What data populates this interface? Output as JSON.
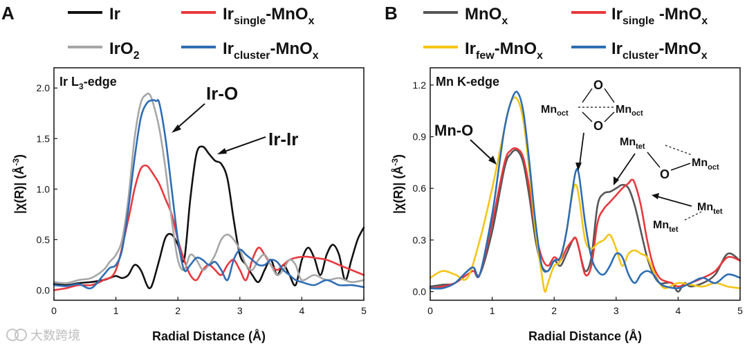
{
  "chart_data": [
    {
      "panel": "A",
      "type": "line",
      "title": "",
      "edge": {
        "pre": "Ir L",
        "sub": "3",
        "post": "-edge"
      },
      "xlabel": "Radial Distance (Å)",
      "ylabel": {
        "pre": "|χ(R)| (Å",
        "sup": "-3",
        "post": ")"
      },
      "xlim": [
        0,
        5
      ],
      "ylim": [
        -0.1,
        2.2
      ],
      "xticks": [
        "0",
        "1",
        "2",
        "3",
        "4",
        "5"
      ],
      "yticks": [
        "0.0",
        "0.5",
        "1.0",
        "1.5",
        "2.0"
      ],
      "legend": [
        {
          "base": "Ir",
          "sub": "",
          "suffix": "",
          "sub2": "",
          "color": "#111111"
        },
        {
          "base": "Ir",
          "sub": "single",
          "suffix": "-MnO",
          "sub2": "x",
          "color": "#e8383d"
        },
        {
          "base": "IrO",
          "sub": "2",
          "suffix": "",
          "sub2": "",
          "color": "#a6a6a6"
        },
        {
          "base": "Ir",
          "sub": "cluster",
          "suffix": "-MnO",
          "sub2": "x",
          "color": "#2e6db3"
        }
      ],
      "annotations": [
        "Ir-O",
        "Ir-Ir"
      ],
      "series": [
        {
          "name": "Ir",
          "color": "#111111",
          "x": [
            0,
            0.2,
            0.4,
            0.6,
            0.8,
            0.9,
            1.0,
            1.1,
            1.2,
            1.3,
            1.4,
            1.5,
            1.55,
            1.6,
            1.7,
            1.8,
            1.9,
            2.0,
            2.1,
            2.2,
            2.3,
            2.4,
            2.5,
            2.6,
            2.7,
            2.8,
            2.9,
            3.0,
            3.1,
            3.2,
            3.3,
            3.4,
            3.5,
            3.6,
            3.7,
            3.8,
            3.9,
            4.0,
            4.1,
            4.2,
            4.3,
            4.4,
            4.5,
            4.6,
            4.7,
            4.8,
            4.9,
            5.0
          ],
          "y": [
            0.06,
            0.05,
            0.07,
            0.08,
            0.1,
            0.12,
            0.14,
            0.12,
            0.15,
            0.25,
            0.2,
            0.05,
            0.02,
            0.08,
            0.3,
            0.52,
            0.55,
            0.45,
            0.3,
            0.9,
            1.35,
            1.42,
            1.35,
            1.28,
            1.25,
            1.1,
            0.7,
            0.35,
            0.25,
            0.15,
            0.08,
            0.2,
            0.3,
            0.15,
            0.25,
            0.15,
            0.05,
            0.3,
            0.42,
            0.32,
            0.15,
            0.35,
            0.45,
            0.35,
            0.1,
            0.3,
            0.5,
            0.62
          ]
        },
        {
          "name": "Ir_single-MnO_x",
          "color": "#e8383d",
          "x": [
            0,
            0.2,
            0.4,
            0.6,
            0.8,
            1.0,
            1.2,
            1.3,
            1.4,
            1.5,
            1.6,
            1.7,
            1.8,
            1.9,
            2.0,
            2.1,
            2.2,
            2.3,
            2.4,
            2.5,
            2.6,
            2.7,
            2.8,
            2.9,
            3.0,
            3.1,
            3.2,
            3.3,
            3.4,
            3.5,
            3.6,
            3.7,
            3.8,
            3.9,
            4.0,
            4.1,
            4.2,
            4.4,
            4.6,
            4.8,
            5.0
          ],
          "y": [
            0.0,
            0.02,
            0.05,
            0.05,
            0.1,
            0.2,
            0.7,
            1.0,
            1.2,
            1.23,
            1.15,
            1.05,
            0.9,
            0.75,
            0.5,
            0.3,
            0.15,
            0.1,
            0.2,
            0.25,
            0.2,
            0.15,
            0.25,
            0.3,
            0.2,
            0.1,
            0.3,
            0.42,
            0.35,
            0.25,
            0.2,
            0.25,
            0.3,
            0.32,
            0.33,
            0.33,
            0.32,
            0.3,
            0.25,
            0.2,
            0.15
          ]
        },
        {
          "name": "IrO2",
          "color": "#a6a6a6",
          "x": [
            0,
            0.2,
            0.4,
            0.6,
            0.8,
            0.9,
            1.0,
            1.1,
            1.2,
            1.3,
            1.4,
            1.5,
            1.55,
            1.6,
            1.7,
            1.8,
            1.9,
            2.0,
            2.1,
            2.2,
            2.3,
            2.4,
            2.5,
            2.6,
            2.7,
            2.8,
            2.9,
            3.0,
            3.1,
            3.2,
            3.3,
            3.4,
            3.5,
            3.6,
            3.7,
            3.8,
            3.9,
            4.0,
            4.2,
            4.4,
            4.6,
            4.8,
            5.0
          ],
          "y": [
            0.08,
            0.07,
            0.1,
            0.12,
            0.2,
            0.28,
            0.35,
            0.5,
            0.9,
            1.5,
            1.85,
            1.94,
            1.93,
            1.85,
            1.6,
            1.2,
            0.7,
            0.3,
            0.2,
            0.35,
            0.3,
            0.2,
            0.25,
            0.35,
            0.5,
            0.55,
            0.5,
            0.4,
            0.25,
            0.2,
            0.3,
            0.35,
            0.25,
            0.15,
            0.2,
            0.3,
            0.25,
            0.1,
            0.15,
            0.1,
            0.12,
            0.08,
            0.1
          ]
        },
        {
          "name": "Ir_cluster-MnO_x",
          "color": "#2e6db3",
          "x": [
            0,
            0.2,
            0.4,
            0.6,
            0.8,
            0.9,
            1.0,
            1.1,
            1.2,
            1.3,
            1.4,
            1.5,
            1.6,
            1.65,
            1.7,
            1.8,
            1.9,
            2.0,
            2.1,
            2.2,
            2.3,
            2.4,
            2.5,
            2.6,
            2.7,
            2.8,
            2.9,
            3.0,
            3.1,
            3.2,
            3.3,
            3.4,
            3.5,
            3.6,
            3.7,
            3.8,
            3.9,
            4.0,
            4.2,
            4.4,
            4.6,
            4.8,
            5.0
          ],
          "y": [
            0.05,
            0.04,
            0.06,
            0.02,
            0.15,
            0.22,
            0.25,
            0.4,
            0.8,
            1.3,
            1.7,
            1.85,
            1.88,
            1.87,
            1.85,
            1.5,
            1.0,
            0.5,
            0.2,
            0.25,
            0.32,
            0.3,
            0.25,
            0.28,
            0.2,
            0.1,
            0.3,
            0.4,
            0.35,
            0.3,
            0.25,
            0.25,
            0.3,
            0.28,
            0.2,
            0.15,
            0.1,
            0.08,
            0.05,
            0.1,
            0.05,
            0.05,
            0.03
          ]
        }
      ]
    },
    {
      "panel": "B",
      "type": "line",
      "title": "",
      "edge": {
        "pre": "Mn K-edge",
        "sub": "",
        "post": ""
      },
      "xlabel": "Radial Distance (Å)",
      "ylabel": {
        "pre": "|χ(R)| (Å",
        "sup": "-3",
        "post": ")"
      },
      "xlim": [
        0,
        5
      ],
      "ylim": [
        -0.05,
        1.3
      ],
      "xticks": [
        "0",
        "1",
        "2",
        "3",
        "4",
        "5"
      ],
      "yticks": [
        "0.0",
        "0.3",
        "0.6",
        "0.9",
        "1.2"
      ],
      "legend": [
        {
          "base": "MnO",
          "sub": "x",
          "suffix": "",
          "sub2": "",
          "color": "#555555"
        },
        {
          "base": "Ir",
          "sub": "single",
          "suffix": " -MnO",
          "sub2": "x",
          "color": "#e8383d"
        },
        {
          "base": "Ir",
          "sub": "few",
          "suffix": "-MnO",
          "sub2": "x",
          "color": "#f5c518"
        },
        {
          "base": "Ir",
          "sub": "cluster",
          "suffix": "-MnO",
          "sub2": "x",
          "color": "#2e6db3"
        }
      ],
      "annotations": [
        "Mn-O"
      ],
      "series": [
        {
          "name": "MnO_x",
          "color": "#555555",
          "x": [
            0,
            0.2,
            0.4,
            0.6,
            0.7,
            0.8,
            1.0,
            1.2,
            1.3,
            1.4,
            1.5,
            1.6,
            1.7,
            1.8,
            1.9,
            2.0,
            2.1,
            2.2,
            2.3,
            2.35,
            2.4,
            2.5,
            2.6,
            2.7,
            2.8,
            2.9,
            3.0,
            3.1,
            3.2,
            3.3,
            3.4,
            3.5,
            3.6,
            3.7,
            3.8,
            3.9,
            4.0,
            4.1,
            4.2,
            4.4,
            4.6,
            4.8,
            5.0
          ],
          "y": [
            0.03,
            0.04,
            0.05,
            0.12,
            0.14,
            0.1,
            0.35,
            0.72,
            0.8,
            0.82,
            0.75,
            0.55,
            0.3,
            0.15,
            0.12,
            0.18,
            0.15,
            0.22,
            0.3,
            0.31,
            0.25,
            0.12,
            0.2,
            0.5,
            0.57,
            0.58,
            0.6,
            0.62,
            0.6,
            0.5,
            0.35,
            0.2,
            0.1,
            0.05,
            0.05,
            0.05,
            0.0,
            0.05,
            0.03,
            0.05,
            0.1,
            0.22,
            0.18
          ]
        },
        {
          "name": "Ir_single-MnO_x",
          "color": "#e8383d",
          "x": [
            0,
            0.2,
            0.4,
            0.6,
            0.7,
            0.8,
            1.0,
            1.2,
            1.3,
            1.4,
            1.5,
            1.6,
            1.7,
            1.8,
            1.9,
            2.0,
            2.1,
            2.2,
            2.3,
            2.35,
            2.4,
            2.5,
            2.6,
            2.7,
            2.8,
            2.9,
            3.0,
            3.1,
            3.2,
            3.25,
            3.3,
            3.4,
            3.5,
            3.6,
            3.7,
            3.8,
            3.9,
            4.0,
            4.2,
            4.4,
            4.6,
            4.8,
            5.0
          ],
          "y": [
            0.02,
            0.03,
            0.05,
            0.1,
            0.12,
            0.1,
            0.4,
            0.75,
            0.82,
            0.83,
            0.78,
            0.6,
            0.35,
            0.2,
            0.15,
            0.2,
            0.18,
            0.25,
            0.3,
            0.31,
            0.25,
            0.1,
            0.15,
            0.4,
            0.48,
            0.52,
            0.56,
            0.6,
            0.63,
            0.65,
            0.63,
            0.5,
            0.3,
            0.15,
            0.08,
            0.06,
            0.05,
            0.03,
            0.05,
            0.08,
            0.12,
            0.2,
            0.18
          ]
        },
        {
          "name": "Ir_few-MnO_x",
          "color": "#f5c518",
          "x": [
            0,
            0.2,
            0.4,
            0.6,
            0.8,
            1.0,
            1.2,
            1.3,
            1.4,
            1.5,
            1.6,
            1.7,
            1.8,
            1.85,
            1.9,
            2.0,
            2.1,
            2.2,
            2.3,
            2.35,
            2.4,
            2.5,
            2.6,
            2.7,
            2.8,
            2.9,
            3.0,
            3.1,
            3.2,
            3.3,
            3.4,
            3.5,
            3.6,
            3.7,
            3.8,
            4.0,
            4.2,
            4.4,
            4.6,
            4.8,
            5.0
          ],
          "y": [
            0.08,
            0.12,
            0.1,
            0.08,
            0.3,
            0.6,
            0.95,
            1.1,
            1.12,
            1.0,
            0.7,
            0.35,
            0.1,
            0.0,
            0.05,
            0.15,
            0.18,
            0.35,
            0.58,
            0.62,
            0.55,
            0.3,
            0.25,
            0.28,
            0.3,
            0.33,
            0.25,
            0.15,
            0.22,
            0.24,
            0.22,
            0.2,
            0.12,
            0.05,
            0.02,
            0.05,
            0.04,
            0.03,
            0.05,
            0.03,
            0.02
          ]
        },
        {
          "name": "Ir_cluster-MnO_x",
          "color": "#2e6db3",
          "x": [
            0,
            0.2,
            0.4,
            0.6,
            0.7,
            0.8,
            1.0,
            1.1,
            1.2,
            1.3,
            1.4,
            1.5,
            1.6,
            1.7,
            1.8,
            1.9,
            2.0,
            2.1,
            2.2,
            2.3,
            2.35,
            2.4,
            2.5,
            2.6,
            2.7,
            2.8,
            2.9,
            3.0,
            3.1,
            3.2,
            3.3,
            3.4,
            3.5,
            3.6,
            3.7,
            3.8,
            4.0,
            4.2,
            4.4,
            4.6,
            4.8,
            5.0
          ],
          "y": [
            0.02,
            0.02,
            0.05,
            0.12,
            0.14,
            0.1,
            0.45,
            0.7,
            0.95,
            1.1,
            1.16,
            1.05,
            0.75,
            0.4,
            0.15,
            0.12,
            0.18,
            0.2,
            0.35,
            0.6,
            0.7,
            0.68,
            0.4,
            0.2,
            0.12,
            0.1,
            0.15,
            0.22,
            0.2,
            0.1,
            0.05,
            0.1,
            0.12,
            0.1,
            0.05,
            0.03,
            0.02,
            0.05,
            0.08,
            0.05,
            0.1,
            0.08
          ]
        }
      ]
    }
  ],
  "panel_labels": {
    "a": "A",
    "b": "B"
  },
  "annot_b": {
    "mn": "Mn",
    "oct": "oct",
    "tet": "tet",
    "o": "O"
  },
  "watermark": "大数跨境"
}
